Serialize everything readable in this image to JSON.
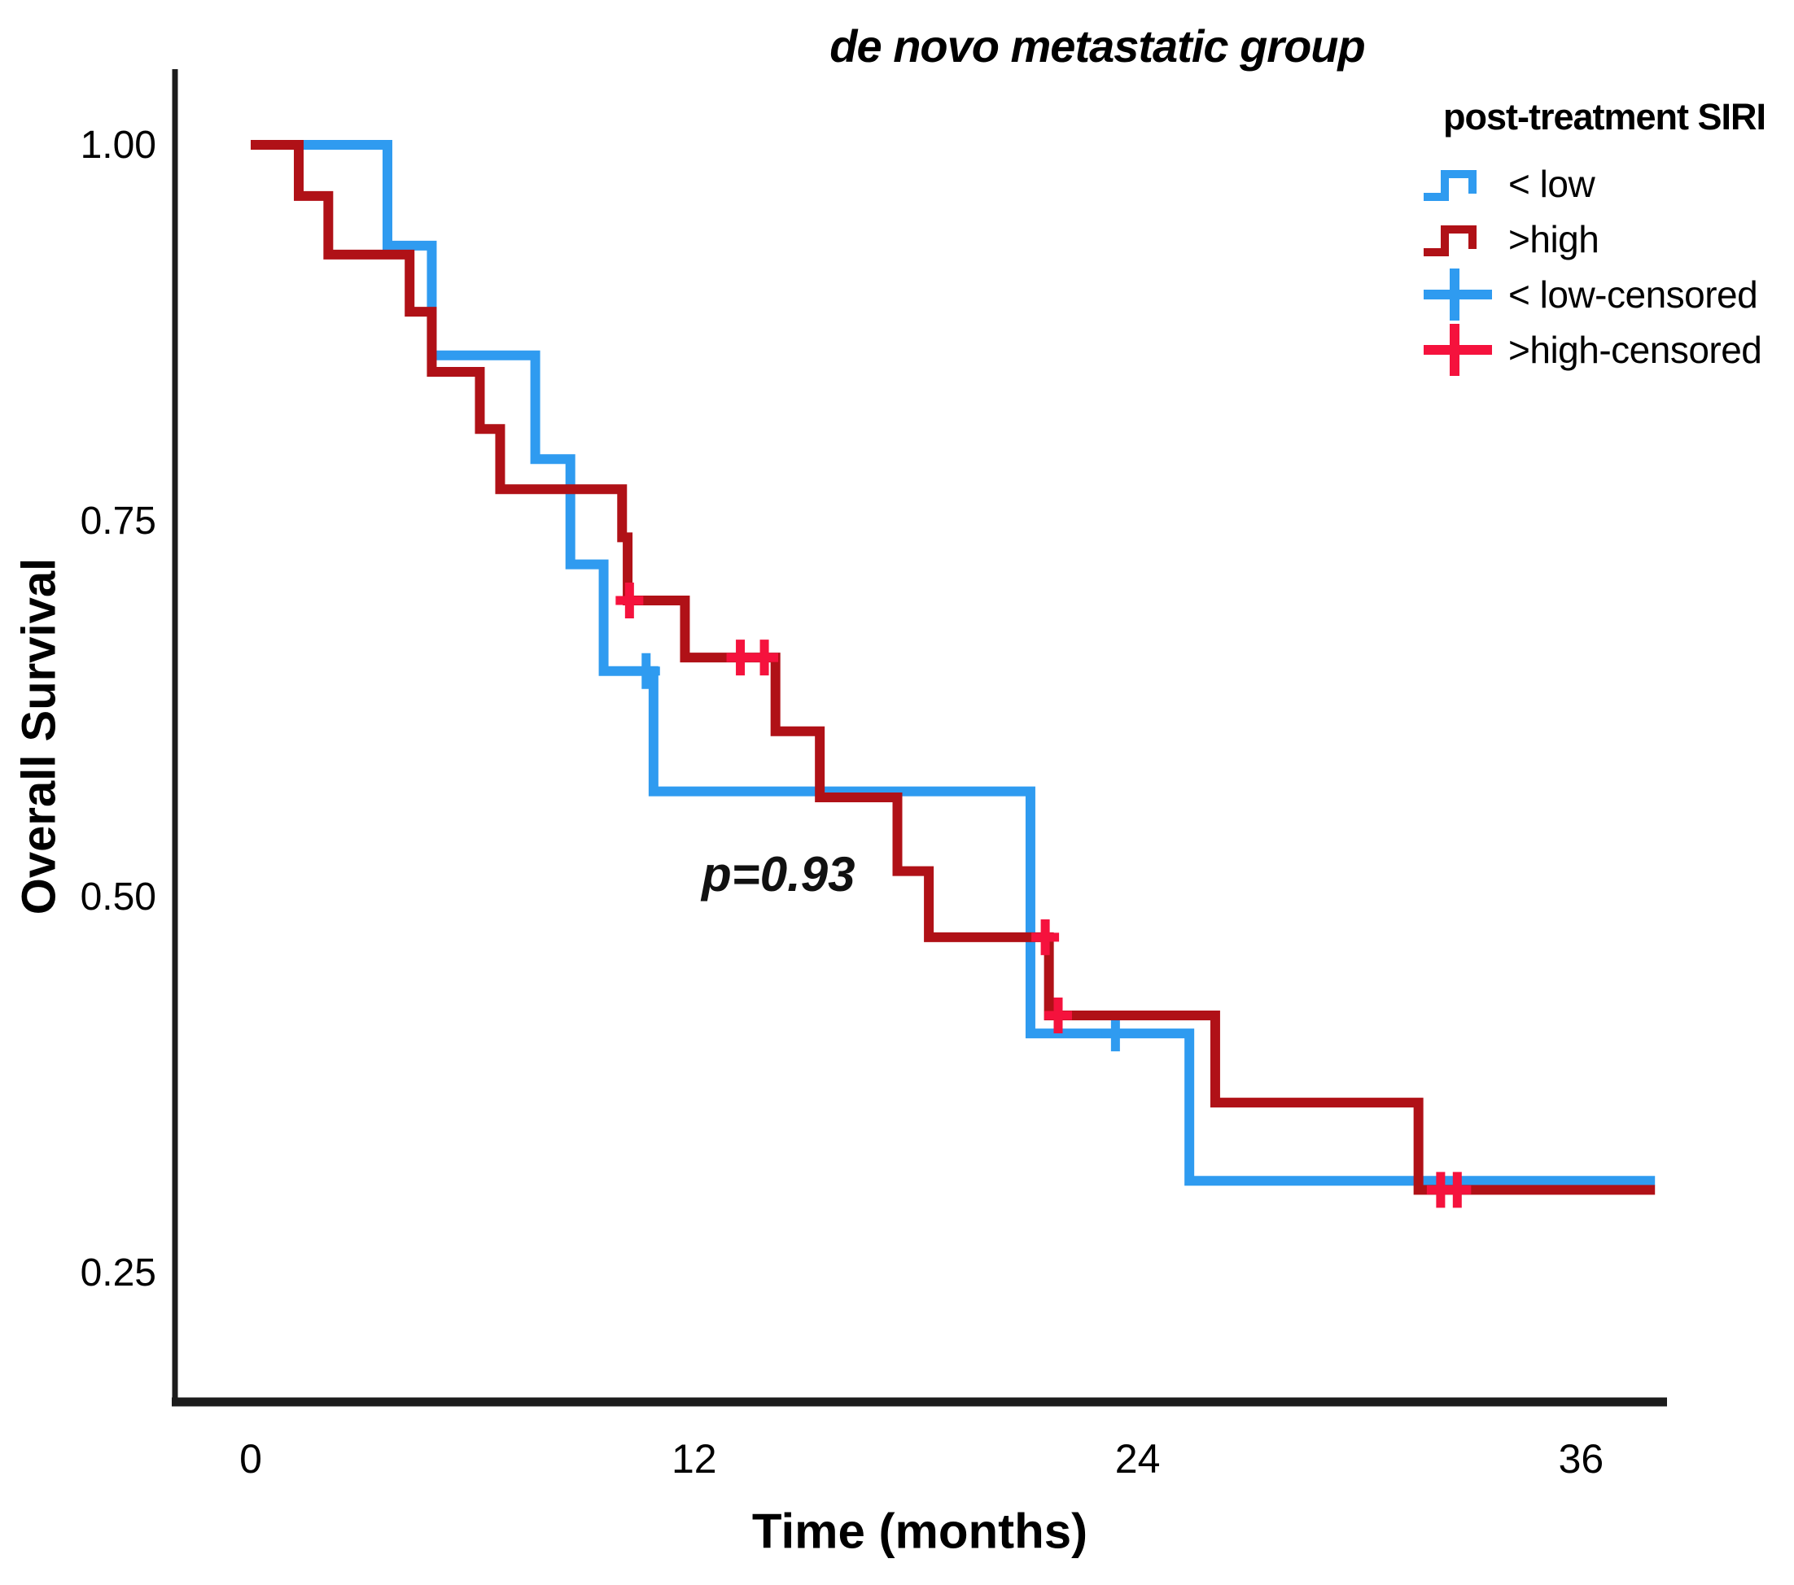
{
  "title": "de novo metastatic group",
  "p_value_label": "p=0.93",
  "axes": {
    "x_label": "Time (months)",
    "y_label": "Overall Survival"
  },
  "legend": {
    "title": "post-treatment SIRI",
    "items": [
      {
        "label": "< low",
        "type": "step",
        "color_key": "low"
      },
      {
        "label": ">high",
        "type": "step",
        "color_key": "high"
      },
      {
        "label": "< low-censored",
        "type": "cross",
        "color_key": "low_censor"
      },
      {
        "label": ">high-censored",
        "type": "cross",
        "color_key": "high_censor"
      }
    ]
  },
  "colors": {
    "low": "#2f9bf0",
    "high": "#b01117",
    "low_censor": "#2f9bf0",
    "high_censor": "#f5123d",
    "axis": "#1c1c1c",
    "text": "#000000"
  },
  "chart_data": {
    "type": "line",
    "subtype": "kaplan-meier-step",
    "title": "de novo metastatic group",
    "xlabel": "Time (months)",
    "ylabel": "Overall Survival",
    "xlim": [
      -2,
      38.5
    ],
    "ylim": [
      0.16,
      1.05
    ],
    "grid": false,
    "legend_position": "top-right",
    "annotation": {
      "text": "p=0.93",
      "t": 12.2,
      "s": 0.51
    },
    "x_ticks": [
      {
        "label": "0",
        "t": 0
      },
      {
        "label": "12",
        "t": 12
      },
      {
        "label": "24",
        "t": 24
      },
      {
        "label": "36",
        "t": 36
      }
    ],
    "y_ticks": [
      {
        "label": "1.00",
        "s": 1.0
      },
      {
        "label": "0.75",
        "s": 0.75
      },
      {
        "label": "0.50",
        "s": 0.5
      },
      {
        "label": "0.25",
        "s": 0.25
      }
    ],
    "series": [
      {
        "name": "< low",
        "color_key": "low",
        "end_t": 38.0,
        "steps": [
          [
            0,
            1.0
          ],
          [
            3.7,
            0.933
          ],
          [
            4.9,
            0.86
          ],
          [
            7.7,
            0.791
          ],
          [
            8.65,
            0.721
          ],
          [
            9.55,
            0.65
          ],
          [
            10.9,
            0.57
          ],
          [
            21.1,
            0.409
          ],
          [
            25.4,
            0.311
          ]
        ],
        "censored": [
          [
            10.7,
            0.65
          ],
          [
            23.4,
            0.409
          ]
        ]
      },
      {
        "name": ">high",
        "color_key": "high",
        "censor_color_key": "high_censor",
        "end_t": 38.0,
        "steps": [
          [
            0,
            1.0
          ],
          [
            1.3,
            0.966
          ],
          [
            2.1,
            0.927
          ],
          [
            4.3,
            0.889
          ],
          [
            4.9,
            0.849
          ],
          [
            6.2,
            0.811
          ],
          [
            6.75,
            0.771
          ],
          [
            10.05,
            0.739
          ],
          [
            10.2,
            0.697
          ],
          [
            11.75,
            0.659
          ],
          [
            14.2,
            0.61
          ],
          [
            15.4,
            0.566
          ],
          [
            17.5,
            0.517
          ],
          [
            18.35,
            0.473
          ],
          [
            21.6,
            0.421
          ],
          [
            26.1,
            0.363
          ],
          [
            31.6,
            0.305
          ]
        ],
        "censored": [
          [
            10.25,
            0.697
          ],
          [
            13.25,
            0.659
          ],
          [
            13.9,
            0.659
          ],
          [
            21.5,
            0.473
          ],
          [
            21.85,
            0.421
          ],
          [
            32.2,
            0.305
          ],
          [
            32.65,
            0.305
          ]
        ]
      }
    ]
  }
}
